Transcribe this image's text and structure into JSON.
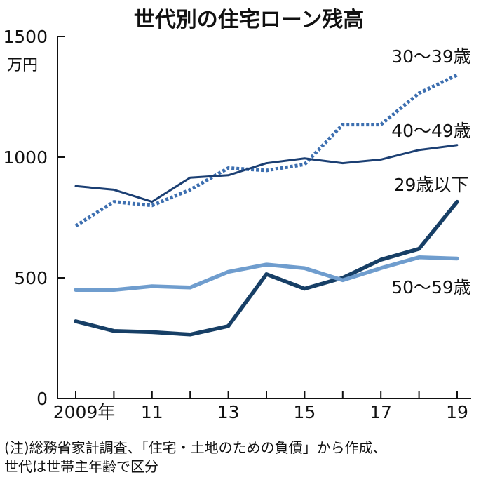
{
  "chart_data": {
    "type": "line",
    "title": "世代別の住宅ローン残高",
    "unit": "万円",
    "x": [
      2009,
      2010,
      2011,
      2012,
      2013,
      2014,
      2015,
      2016,
      2017,
      2018,
      2019
    ],
    "x_tick_labels": [
      "2009年",
      "11",
      "13",
      "15",
      "17",
      "19"
    ],
    "y_ticks": [
      "0",
      "500",
      "1000",
      "1500"
    ],
    "ylim": [
      0,
      1500
    ],
    "grid": false,
    "series": [
      {
        "name": "30〜39歳",
        "color": "#3d6fb0",
        "style": "dotted",
        "values": [
          715,
          815,
          800,
          865,
          955,
          945,
          970,
          1135,
          1135,
          1265,
          1340
        ]
      },
      {
        "name": "40〜49歳",
        "color": "#1b3f73",
        "style": "solid-thin",
        "values": [
          880,
          865,
          815,
          915,
          925,
          975,
          995,
          975,
          990,
          1030,
          1050
        ]
      },
      {
        "name": "29歳以下",
        "color": "#173f66",
        "style": "solid-thick",
        "values": [
          320,
          280,
          275,
          265,
          300,
          515,
          455,
          500,
          575,
          620,
          815
        ]
      },
      {
        "name": "50〜59歳",
        "color": "#6f9dce",
        "style": "solid-thick",
        "values": [
          450,
          450,
          465,
          460,
          525,
          555,
          540,
          490,
          540,
          585,
          580
        ]
      }
    ],
    "note": [
      "(注)総務省家計調査、「住宅・土地のための負債」から作成、",
      "世代は世帯主年齢で区分"
    ]
  }
}
